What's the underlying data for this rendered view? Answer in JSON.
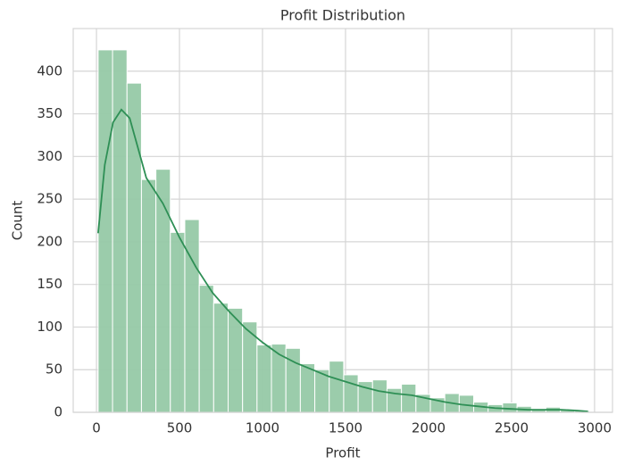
{
  "chart_data": {
    "type": "histogram",
    "title": "Profit Distribution",
    "x_label": "Profit",
    "y_label": "Count",
    "bins": [
      10,
      97,
      184,
      271,
      358,
      445,
      532,
      619,
      706,
      793,
      880,
      967,
      1054,
      1141,
      1228,
      1315,
      1402,
      1489,
      1576,
      1663,
      1750,
      1837,
      1924,
      2011,
      2098,
      2185,
      2272,
      2359,
      2446,
      2533,
      2620,
      2707,
      2794,
      2881,
      2968
    ],
    "values": [
      425,
      425,
      386,
      273,
      285,
      211,
      226,
      149,
      128,
      122,
      106,
      79,
      80,
      75,
      57,
      50,
      60,
      44,
      36,
      38,
      28,
      33,
      21,
      17,
      22,
      20,
      12,
      9,
      11,
      7,
      4,
      6,
      3,
      2
    ],
    "color": "#96c9a6",
    "kde_x": [
      10,
      50,
      100,
      150,
      200,
      250,
      300,
      400,
      500,
      600,
      700,
      800,
      900,
      1000,
      1100,
      1200,
      1300,
      1400,
      1500,
      1600,
      1700,
      1800,
      1900,
      2000,
      2100,
      2200,
      2300,
      2400,
      2500,
      2600,
      2700,
      2800,
      2900,
      2960
    ],
    "kde_y": [
      210,
      290,
      340,
      355,
      345,
      310,
      275,
      245,
      205,
      170,
      140,
      118,
      98,
      82,
      68,
      58,
      50,
      42,
      36,
      30,
      25,
      22,
      20,
      16,
      12,
      9,
      7,
      5,
      4,
      3,
      3,
      3,
      2,
      1
    ],
    "kde_color": "#2e8f55",
    "xlim": [
      -140,
      3108
    ],
    "ylim": [
      0,
      450
    ],
    "xticks": [
      0,
      500,
      1000,
      1500,
      2000,
      2500,
      3000
    ],
    "yticks": [
      0,
      50,
      100,
      150,
      200,
      250,
      300,
      350,
      400
    ],
    "grid": true
  }
}
